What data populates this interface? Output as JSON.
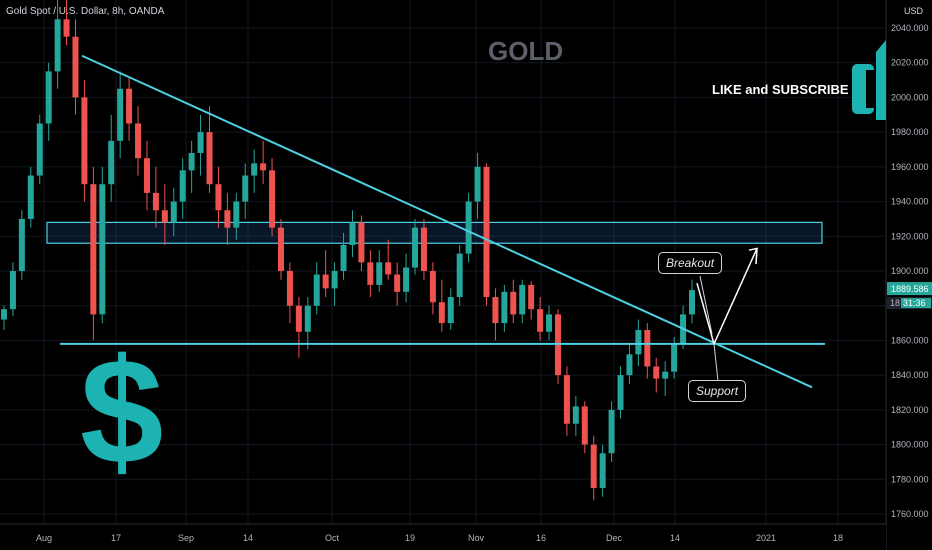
{
  "header": {
    "symbol_line": "Gold Spot / U.S. Dollar, 8h, OANDA"
  },
  "watermark": "GOLD",
  "promo_text": "LIKE and SUBSCRIBE",
  "annotations": {
    "breakout": "Breakout",
    "support": "Support",
    "dollar_sign": "$"
  },
  "price_badges": {
    "last_price": "1889.586",
    "countdown": "31:36",
    "partial_label": "18"
  },
  "colors": {
    "up": "#26a69a",
    "down": "#ef5350",
    "trendline": "#4dd0e1",
    "accent": "#1eb3b3",
    "badge_price": "#26a69a"
  },
  "chart_data": {
    "type": "candlestick",
    "currency": "USD",
    "y_ticks": [
      "2040.000",
      "2020.000",
      "2000.000",
      "1980.000",
      "1960.000",
      "1940.000",
      "1920.000",
      "1900.000",
      "1880.000",
      "1860.000",
      "1840.000",
      "1820.000",
      "1800.000",
      "1780.000",
      "1760.000"
    ],
    "ylim": [
      1755,
      2050
    ],
    "x_ticks": [
      "Aug",
      "17",
      "Sep",
      "14",
      "Oct",
      "19",
      "Nov",
      "16",
      "Dec",
      "14",
      "2021",
      "18"
    ],
    "trendline_points": [
      [
        "Aug 10",
        2024
      ],
      [
        "Dec 26",
        1833
      ]
    ],
    "horizontal_support": 1858,
    "resistance_zone": [
      1916,
      1928
    ],
    "projected_move": [
      [
        "Dec 16",
        1860
      ],
      [
        "Dec 27",
        1911
      ]
    ],
    "last_price": 1889.586,
    "candles": [
      [
        1872,
        1880,
        1866,
        1878
      ],
      [
        1878,
        1905,
        1874,
        1900
      ],
      [
        1900,
        1935,
        1895,
        1930
      ],
      [
        1930,
        1960,
        1925,
        1955
      ],
      [
        1955,
        1990,
        1950,
        1985
      ],
      [
        1985,
        2020,
        1975,
        2015
      ],
      [
        2015,
        2060,
        2005,
        2045
      ],
      [
        2045,
        2075,
        2030,
        2035
      ],
      [
        2035,
        2045,
        1990,
        2000
      ],
      [
        2000,
        2010,
        1940,
        1950
      ],
      [
        1950,
        1960,
        1860,
        1875
      ],
      [
        1875,
        1960,
        1870,
        1950
      ],
      [
        1950,
        1990,
        1940,
        1975
      ],
      [
        1975,
        2015,
        1965,
        2005
      ],
      [
        2005,
        2012,
        1975,
        1985
      ],
      [
        1985,
        1995,
        1955,
        1965
      ],
      [
        1965,
        1975,
        1935,
        1945
      ],
      [
        1945,
        1960,
        1925,
        1935
      ],
      [
        1935,
        1950,
        1915,
        1928
      ],
      [
        1928,
        1948,
        1920,
        1940
      ],
      [
        1940,
        1965,
        1930,
        1958
      ],
      [
        1958,
        1975,
        1945,
        1968
      ],
      [
        1968,
        1990,
        1955,
        1980
      ],
      [
        1980,
        1995,
        1945,
        1950
      ],
      [
        1950,
        1960,
        1925,
        1935
      ],
      [
        1935,
        1945,
        1915,
        1925
      ],
      [
        1925,
        1945,
        1918,
        1940
      ],
      [
        1940,
        1962,
        1930,
        1955
      ],
      [
        1955,
        1970,
        1945,
        1962
      ],
      [
        1962,
        1975,
        1950,
        1958
      ],
      [
        1958,
        1965,
        1920,
        1925
      ],
      [
        1925,
        1930,
        1895,
        1900
      ],
      [
        1900,
        1905,
        1870,
        1880
      ],
      [
        1880,
        1885,
        1850,
        1865
      ],
      [
        1865,
        1885,
        1855,
        1880
      ],
      [
        1880,
        1905,
        1875,
        1898
      ],
      [
        1898,
        1912,
        1885,
        1890
      ],
      [
        1890,
        1905,
        1880,
        1900
      ],
      [
        1900,
        1922,
        1895,
        1915
      ],
      [
        1915,
        1935,
        1908,
        1928
      ],
      [
        1928,
        1932,
        1900,
        1905
      ],
      [
        1905,
        1912,
        1885,
        1892
      ],
      [
        1892,
        1912,
        1888,
        1905
      ],
      [
        1905,
        1918,
        1895,
        1898
      ],
      [
        1898,
        1905,
        1880,
        1888
      ],
      [
        1888,
        1910,
        1882,
        1902
      ],
      [
        1902,
        1930,
        1898,
        1925
      ],
      [
        1925,
        1930,
        1895,
        1900
      ],
      [
        1900,
        1905,
        1875,
        1882
      ],
      [
        1882,
        1895,
        1865,
        1870
      ],
      [
        1870,
        1890,
        1866,
        1885
      ],
      [
        1885,
        1915,
        1880,
        1910
      ],
      [
        1910,
        1945,
        1905,
        1940
      ],
      [
        1940,
        1968,
        1930,
        1960
      ],
      [
        1960,
        1962,
        1880,
        1885
      ],
      [
        1885,
        1890,
        1860,
        1870
      ],
      [
        1870,
        1892,
        1865,
        1888
      ],
      [
        1888,
        1895,
        1870,
        1875
      ],
      [
        1875,
        1895,
        1870,
        1892
      ],
      [
        1892,
        1894,
        1872,
        1878
      ],
      [
        1878,
        1885,
        1860,
        1865
      ],
      [
        1865,
        1880,
        1860,
        1875
      ],
      [
        1875,
        1878,
        1835,
        1840
      ],
      [
        1840,
        1845,
        1805,
        1812
      ],
      [
        1812,
        1828,
        1805,
        1822
      ],
      [
        1822,
        1825,
        1795,
        1800
      ],
      [
        1800,
        1805,
        1768,
        1775
      ],
      [
        1775,
        1800,
        1770,
        1795
      ],
      [
        1795,
        1825,
        1790,
        1820
      ],
      [
        1820,
        1845,
        1815,
        1840
      ],
      [
        1840,
        1858,
        1835,
        1852
      ],
      [
        1852,
        1872,
        1845,
        1866
      ],
      [
        1866,
        1870,
        1838,
        1845
      ],
      [
        1845,
        1850,
        1830,
        1838
      ],
      [
        1838,
        1848,
        1828,
        1842
      ],
      [
        1842,
        1862,
        1838,
        1858
      ],
      [
        1858,
        1880,
        1855,
        1875
      ],
      [
        1875,
        1895,
        1870,
        1889
      ]
    ]
  }
}
